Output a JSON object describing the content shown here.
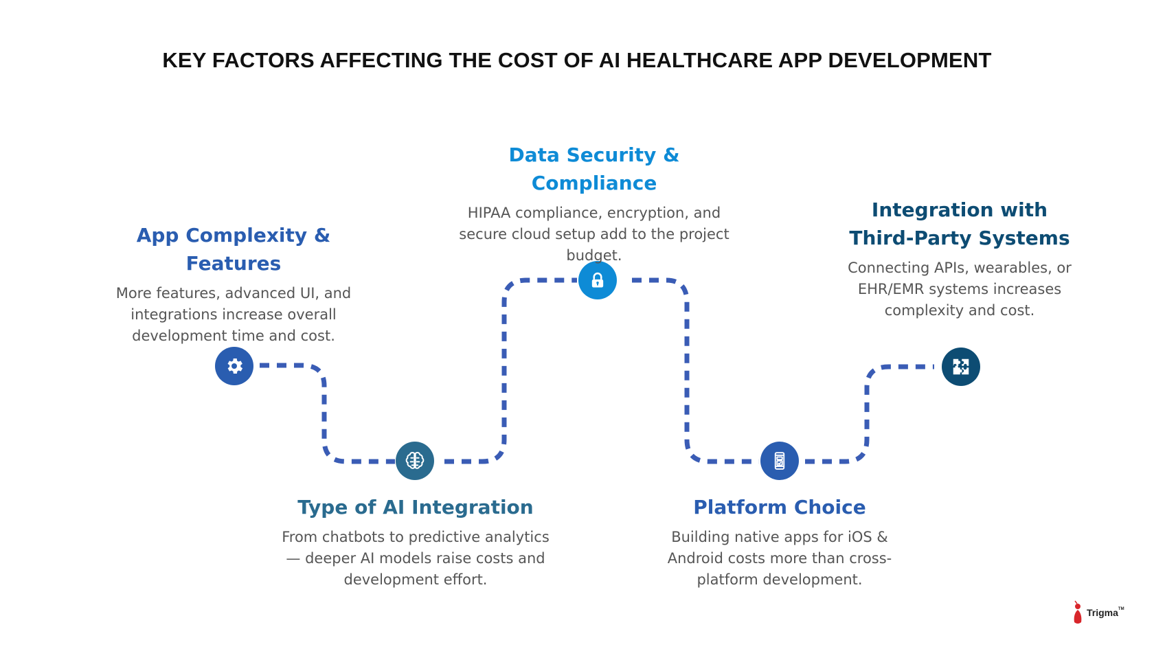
{
  "title": "KEY FACTORS AFFECTING THE COST OF AI HEALTHCARE APP DEVELOPMENT",
  "colors": {
    "path": "#3a5cb5",
    "app_complexity": "#2a5db0",
    "ai_integration": "#2a6b8f",
    "data_security": "#0e8bd6",
    "platform_choice": "#2a5db0",
    "integration": "#0d4c73",
    "body_text": "#555555"
  },
  "factors": [
    {
      "id": "app_complexity",
      "icon": "gear-icon",
      "title": "App Complexity & Features",
      "description": "More features, advanced UI, and integrations increase overall development time and cost."
    },
    {
      "id": "ai_integration",
      "icon": "brain-icon",
      "title": "Type of AI Integration",
      "description": "From chatbots to predictive analytics — deeper AI models raise costs and development effort."
    },
    {
      "id": "data_security",
      "icon": "lock-icon",
      "title": "Data Security & Compliance",
      "description": "HIPAA compliance, encryption, and secure cloud setup add to the project budget."
    },
    {
      "id": "platform_choice",
      "icon": "mobile-device-icon",
      "title": "Platform Choice",
      "description": "Building native apps for iOS & Android costs more than cross-platform development."
    },
    {
      "id": "integration",
      "icon": "puzzle-icon",
      "title": "Integration with Third-Party Systems",
      "description": "Connecting APIs, wearables, or EHR/EMR systems increases complexity and cost."
    }
  ],
  "logo": {
    "name": "Trigma",
    "mark": "TM"
  }
}
